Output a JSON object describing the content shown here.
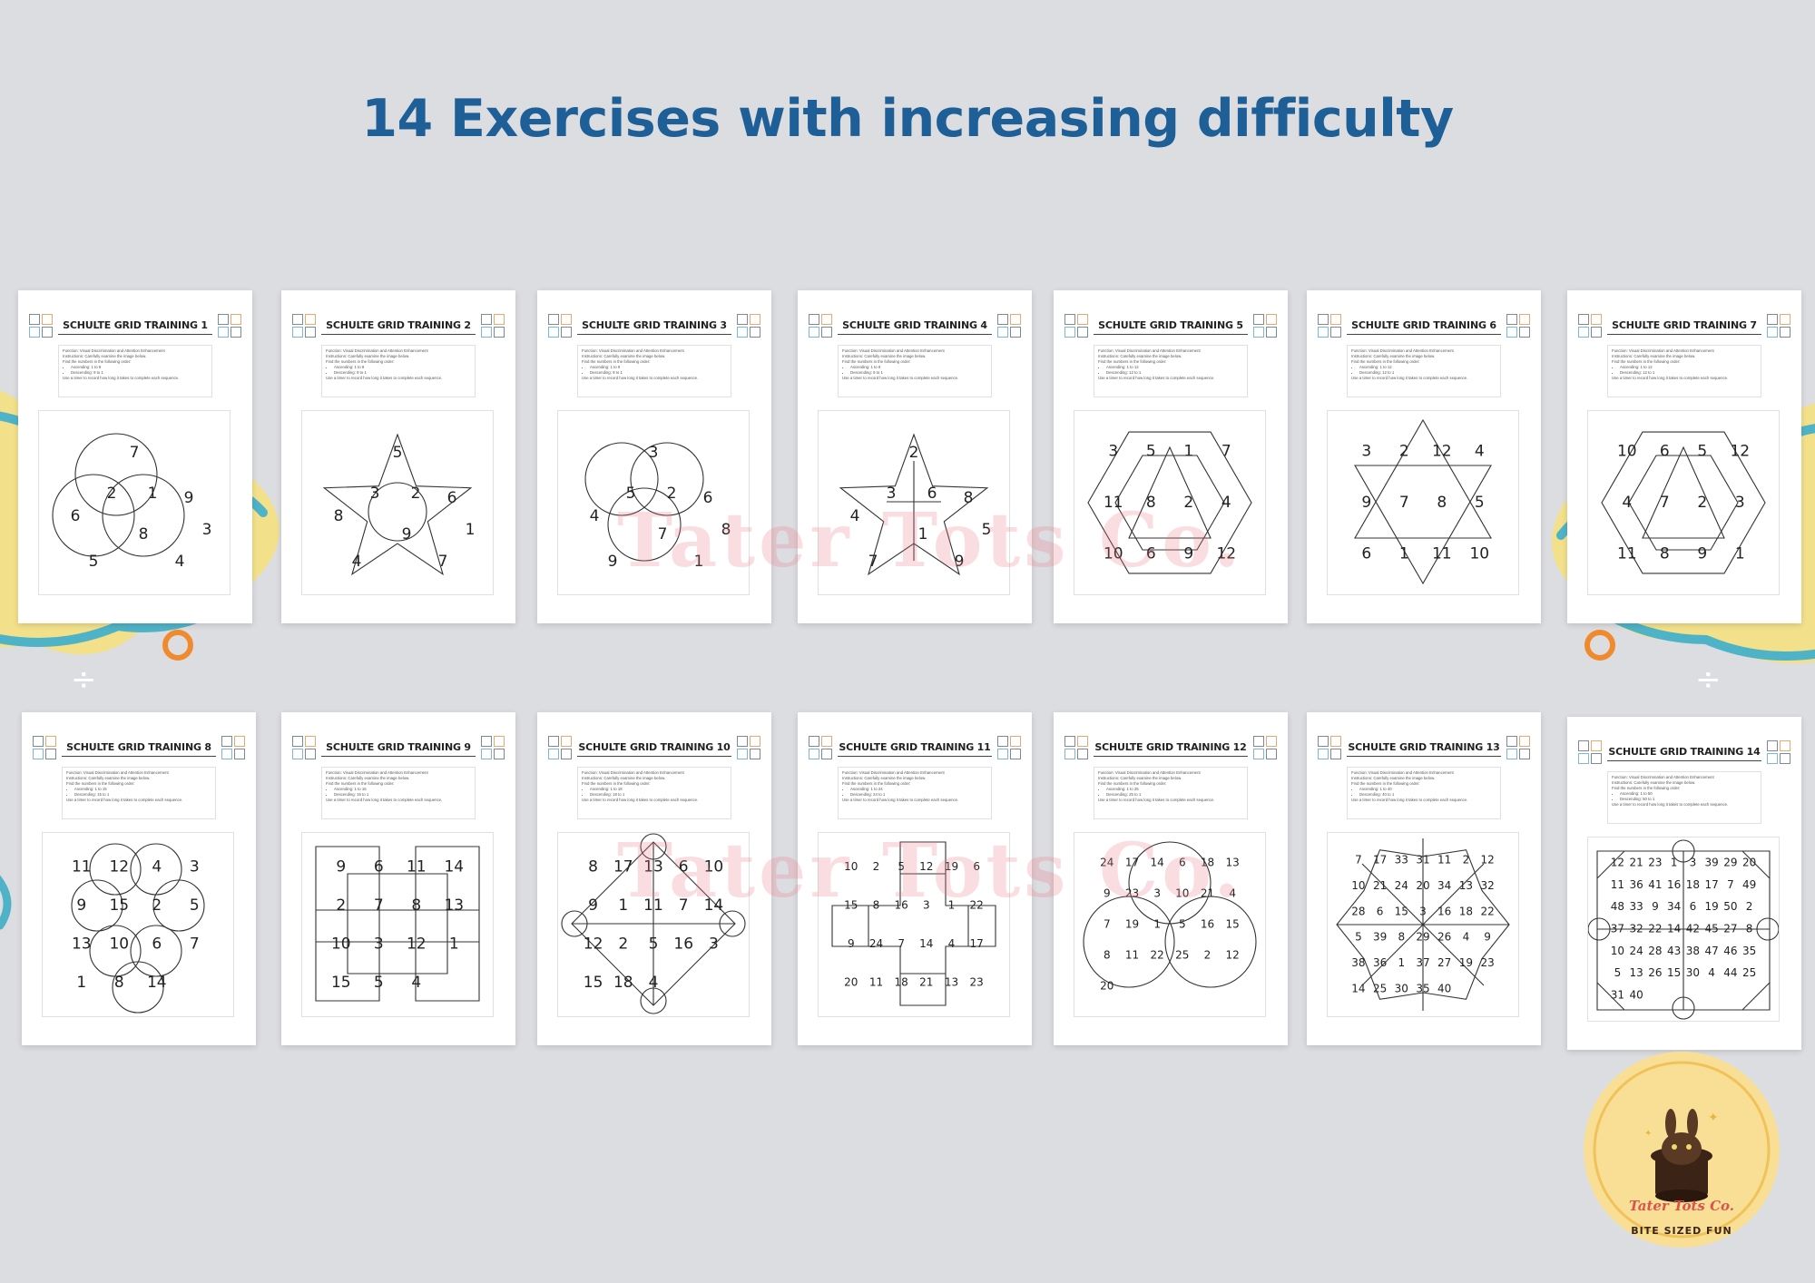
{
  "headline": "14 Exercises with increasing difficulty",
  "colors": {
    "background": "#dcdde0",
    "headline": "#1d5f96",
    "deco_blue": "#4fb3c7",
    "deco_yellow": "#f6e07a",
    "deco_orange": "#f08a2e"
  },
  "worksheet": {
    "function_text": "Function: Visual Discrimination and Attention Enhancement",
    "instructions_text": "Instructions: Carefully examine the image below.",
    "find_text": "Find the numbers in the following order:",
    "timer_text": "Use a timer to record how long it takes to complete each sequence."
  },
  "pages": [
    {
      "title": "SCHULTE GRID TRAINING 1",
      "ascending": "Ascending: 1 to 9",
      "descending": "Descending: 9 to 1",
      "numbers": [
        "7",
        "2",
        "1",
        "9",
        "6",
        "3",
        "8",
        "5",
        "4"
      ]
    },
    {
      "title": "SCHULTE GRID TRAINING 2",
      "ascending": "Ascending: 1 to 9",
      "descending": "Descending: 9 to 1",
      "numbers": [
        "5",
        "3",
        "2",
        "6",
        "8",
        "1",
        "9",
        "4",
        "7"
      ]
    },
    {
      "title": "SCHULTE GRID TRAINING 3",
      "ascending": "Ascending: 1 to 9",
      "descending": "Descending: 9 to 1",
      "numbers": [
        "3",
        "5",
        "2",
        "6",
        "4",
        "8",
        "7",
        "9",
        "1"
      ]
    },
    {
      "title": "SCHULTE GRID TRAINING 4",
      "ascending": "Ascending: 1 to 9",
      "descending": "Descending: 9 to 1",
      "numbers": [
        "2",
        "3",
        "6",
        "8",
        "4",
        "5",
        "1",
        "7",
        "9"
      ]
    },
    {
      "title": "SCHULTE GRID TRAINING 5",
      "ascending": "Ascending: 1 to 12",
      "descending": "Descending: 12 to 1",
      "numbers": [
        "3",
        "5",
        "1",
        "7",
        "11",
        "8",
        "2",
        "4",
        "10",
        "6",
        "9",
        "12"
      ]
    },
    {
      "title": "SCHULTE GRID TRAINING 6",
      "ascending": "Ascending: 1 to 12",
      "descending": "Descending: 12 to 1",
      "numbers": [
        "3",
        "2",
        "12",
        "4",
        "9",
        "7",
        "8",
        "5",
        "6",
        "1",
        "11",
        "10"
      ]
    },
    {
      "title": "SCHULTE GRID TRAINING 7",
      "ascending": "Ascending: 1 to 12",
      "descending": "Descending: 12 to 1",
      "numbers": [
        "10",
        "6",
        "5",
        "12",
        "4",
        "7",
        "2",
        "3",
        "11",
        "8",
        "9",
        "1"
      ]
    },
    {
      "title": "SCHULTE GRID TRAINING 8",
      "ascending": "Ascending: 1 to 15",
      "descending": "Descending: 15 to 1",
      "numbers": [
        "11",
        "12",
        "4",
        "3",
        "9",
        "15",
        "2",
        "5",
        "13",
        "10",
        "6",
        "7",
        "1",
        "8",
        "14"
      ]
    },
    {
      "title": "SCHULTE GRID TRAINING 9",
      "ascending": "Ascending: 1 to 15",
      "descending": "Descending: 15 to 1",
      "numbers": [
        "9",
        "6",
        "11",
        "14",
        "2",
        "7",
        "8",
        "13",
        "10",
        "3",
        "12",
        "1",
        "15",
        "5",
        "4"
      ]
    },
    {
      "title": "SCHULTE GRID TRAINING 10",
      "ascending": "Ascending: 1 to 18",
      "descending": "Descending: 18 to 1",
      "numbers": [
        "8",
        "17",
        "13",
        "6",
        "10",
        "9",
        "1",
        "11",
        "7",
        "14",
        "12",
        "2",
        "5",
        "16",
        "3",
        "15",
        "18",
        "4"
      ]
    },
    {
      "title": "SCHULTE GRID TRAINING 11",
      "ascending": "Ascending: 1 to 24",
      "descending": "Descending: 24 to 1",
      "numbers": [
        "10",
        "2",
        "5",
        "12",
        "19",
        "6",
        "15",
        "8",
        "16",
        "3",
        "1",
        "22",
        "9",
        "24",
        "7",
        "14",
        "4",
        "17",
        "20",
        "11",
        "18",
        "21",
        "13",
        "23"
      ]
    },
    {
      "title": "SCHULTE GRID TRAINING 12",
      "ascending": "Ascending: 1 to 25",
      "descending": "Descending: 25 to 1",
      "numbers": [
        "24",
        "17",
        "14",
        "6",
        "18",
        "13",
        "9",
        "23",
        "3",
        "10",
        "21",
        "4",
        "7",
        "19",
        "1",
        "5",
        "16",
        "15",
        "8",
        "11",
        "22",
        "25",
        "2",
        "12",
        "20"
      ]
    },
    {
      "title": "SCHULTE GRID TRAINING 13",
      "ascending": "Ascending: 1 to 40",
      "descending": "Descending: 40 to 1",
      "numbers": [
        "7",
        "17",
        "33",
        "31",
        "11",
        "2",
        "12",
        "10",
        "21",
        "24",
        "20",
        "34",
        "13",
        "32",
        "28",
        "6",
        "15",
        "3",
        "16",
        "18",
        "22",
        "5",
        "39",
        "8",
        "29",
        "26",
        "4",
        "9",
        "38",
        "36",
        "1",
        "37",
        "27",
        "19",
        "23",
        "14",
        "25",
        "30",
        "35",
        "40"
      ]
    },
    {
      "title": "SCHULTE GRID TRAINING 14",
      "ascending": "Ascending: 1 to 50",
      "descending": "Descending: 50 to 1",
      "numbers": [
        "12",
        "21",
        "23",
        "1",
        "3",
        "39",
        "29",
        "20",
        "11",
        "36",
        "41",
        "16",
        "18",
        "17",
        "7",
        "49",
        "48",
        "33",
        "9",
        "34",
        "6",
        "19",
        "50",
        "2",
        "37",
        "32",
        "22",
        "14",
        "42",
        "45",
        "27",
        "8",
        "10",
        "24",
        "28",
        "43",
        "38",
        "47",
        "46",
        "35",
        "5",
        "13",
        "26",
        "15",
        "30",
        "4",
        "44",
        "25",
        "31",
        "40"
      ]
    }
  ],
  "watermark": "Tater Tots Co.",
  "brand": {
    "name": "Tater Tots Co.",
    "tagline": "BITE SIZED FUN"
  }
}
